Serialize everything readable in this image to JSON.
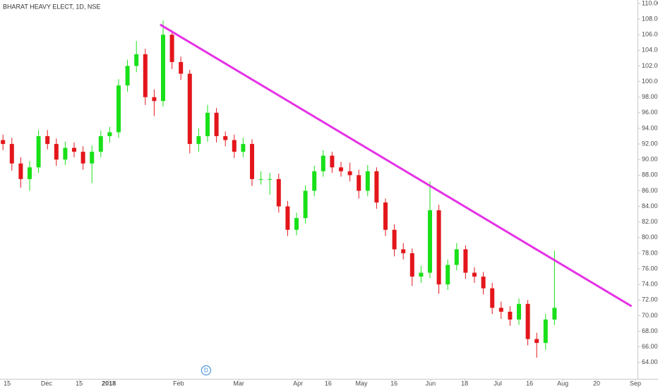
{
  "chart_data": {
    "type": "candlestick",
    "title": "BHARAT HEAVY ELECT, 1D, NSE",
    "x": [
      0,
      3,
      6,
      9,
      12,
      15,
      18,
      21,
      24,
      27,
      30,
      33,
      36,
      39,
      42,
      45,
      48,
      51,
      54,
      57,
      60,
      63,
      66,
      69,
      72,
      75,
      78,
      81,
      84,
      87,
      90,
      93,
      96,
      99,
      102,
      105,
      108,
      111,
      114,
      117,
      120,
      123,
      126,
      129,
      132,
      135,
      138,
      141,
      144,
      147,
      150,
      153,
      156,
      159,
      162,
      165,
      168,
      171,
      174,
      177,
      180,
      183,
      186
    ],
    "open": [
      92.5,
      92,
      89.5,
      87.5,
      89,
      93,
      92,
      90,
      91.5,
      91,
      89.5,
      91,
      93,
      93.5,
      99.5,
      102,
      103.5,
      98,
      97.5,
      106,
      102.5,
      101,
      92,
      93,
      96,
      93,
      92.5,
      91,
      92,
      87.5,
      87.5,
      87.5,
      84,
      81,
      82.5,
      86,
      88.5,
      90.5,
      89,
      88.5,
      88,
      86,
      88.5,
      84.5,
      81,
      78.5,
      78,
      75,
      75.5,
      83.5,
      74,
      76.5,
      78.5,
      75.5,
      75,
      73.5,
      71,
      70.5,
      69.5,
      71.5,
      67,
      66.5,
      69.5
    ],
    "high": [
      93.2,
      92.8,
      90.3,
      89.8,
      93.8,
      93.8,
      92.7,
      92.3,
      92.2,
      91.7,
      91.8,
      93.7,
      94.2,
      100.3,
      102.8,
      105.2,
      104.2,
      99,
      107.8,
      106.6,
      103.2,
      101.5,
      94,
      97,
      96.6,
      93.6,
      93.2,
      92.8,
      92.6,
      88.5,
      88.3,
      88.2,
      84.7,
      83.2,
      86.7,
      89.2,
      91.2,
      91,
      89.7,
      89.6,
      88.7,
      89.3,
      89,
      85,
      81.7,
      79.3,
      78.6,
      76.4,
      87.2,
      84.2,
      77.2,
      79.3,
      79,
      76.2,
      75.6,
      74.2,
      71.8,
      71.2,
      72.2,
      72,
      67.8,
      70.2,
      78.3
    ],
    "low": [
      91.2,
      88.6,
      86.4,
      86,
      88.3,
      91.3,
      89.2,
      89.3,
      90.3,
      88.7,
      87,
      90.3,
      92.2,
      92.8,
      98.7,
      101.2,
      97,
      95.6,
      96.8,
      101.6,
      100.2,
      90.8,
      91,
      92.3,
      92.2,
      91.7,
      90.2,
      90.3,
      86.6,
      86.8,
      85.5,
      83.2,
      80.2,
      80.3,
      81.8,
      85.3,
      87.8,
      88.3,
      87.8,
      87.2,
      85,
      85.3,
      83.7,
      80.2,
      77.6,
      77.2,
      73.8,
      74.2,
      74.8,
      72.8,
      73.3,
      75.8,
      74.7,
      74.2,
      72.7,
      70.2,
      69.6,
      68.7,
      68.8,
      66.2,
      64.6,
      65.6,
      68.8
    ],
    "close": [
      92,
      89.5,
      87.5,
      89,
      93,
      92,
      90,
      91.5,
      91,
      89.5,
      91,
      93,
      93.5,
      99.5,
      102,
      103.5,
      98,
      97.5,
      106,
      102.5,
      101,
      92,
      93,
      96,
      93,
      92.5,
      91,
      92,
      87.5,
      87.5,
      87.5,
      84,
      81,
      82.5,
      86,
      88.5,
      90.5,
      89,
      88.5,
      88,
      86,
      88.5,
      84.5,
      81,
      78.5,
      78,
      75,
      75.5,
      83.5,
      74,
      76.5,
      78.5,
      75.5,
      75,
      73.5,
      71,
      70.5,
      69.5,
      71.5,
      67,
      66.5,
      69.5,
      71
    ],
    "up_color": "#19e019",
    "down_color": "#e3161b",
    "trendline": {
      "color": "#e532e5",
      "x": [
        53,
        212
      ],
      "values": [
        107.3,
        71.2
      ]
    },
    "event_marker": {
      "label": "D",
      "x": 68.5,
      "color": "#2a7fd4"
    },
    "xlim": [
      -1,
      214
    ],
    "ylim": [
      61.9,
      110.45
    ],
    "xticks": [
      {
        "value": 1.4,
        "label": "15"
      },
      {
        "value": 14.7,
        "label": "Dec"
      },
      {
        "value": 25.7,
        "label": "15"
      },
      {
        "value": 35.7,
        "label": "2018"
      },
      {
        "value": 59.2,
        "label": "Feb"
      },
      {
        "value": 79.5,
        "label": "Mar"
      },
      {
        "value": 99.5,
        "label": "Apr"
      },
      {
        "value": 109.7,
        "label": "16"
      },
      {
        "value": 120.9,
        "label": "May"
      },
      {
        "value": 131.9,
        "label": "16"
      },
      {
        "value": 144.2,
        "label": "Jun"
      },
      {
        "value": 155.7,
        "label": "18"
      },
      {
        "value": 166.9,
        "label": "Jul"
      },
      {
        "value": 177.6,
        "label": "16"
      },
      {
        "value": 188.8,
        "label": "Aug"
      },
      {
        "value": 200.2,
        "label": "20"
      },
      {
        "value": 213.3,
        "label": "Sep"
      }
    ],
    "yticks": [
      {
        "value": 64,
        "label": "64.00"
      },
      {
        "value": 66,
        "label": "66.00"
      },
      {
        "value": 68,
        "label": "68.00"
      },
      {
        "value": 70,
        "label": "70.00"
      },
      {
        "value": 72,
        "label": "72.00"
      },
      {
        "value": 74,
        "label": "74.00"
      },
      {
        "value": 76,
        "label": "76.00"
      },
      {
        "value": 78,
        "label": "78.00"
      },
      {
        "value": 80,
        "label": "80.00"
      },
      {
        "value": 82,
        "label": "82.00"
      },
      {
        "value": 84,
        "label": "84.00"
      },
      {
        "value": 86,
        "label": "86.00"
      },
      {
        "value": 88,
        "label": "88.00"
      },
      {
        "value": 90,
        "label": "90.00"
      },
      {
        "value": 92,
        "label": "92.00"
      },
      {
        "value": 94,
        "label": "94.00"
      },
      {
        "value": 96,
        "label": "96.00"
      },
      {
        "value": 98,
        "label": "98.00"
      },
      {
        "value": 100,
        "label": "100.00"
      },
      {
        "value": 102,
        "label": "102.00"
      },
      {
        "value": 104,
        "label": "104.00"
      },
      {
        "value": 106,
        "label": "106.00"
      },
      {
        "value": 108,
        "label": "108.00"
      },
      {
        "value": 110,
        "label": "110.00"
      }
    ]
  }
}
